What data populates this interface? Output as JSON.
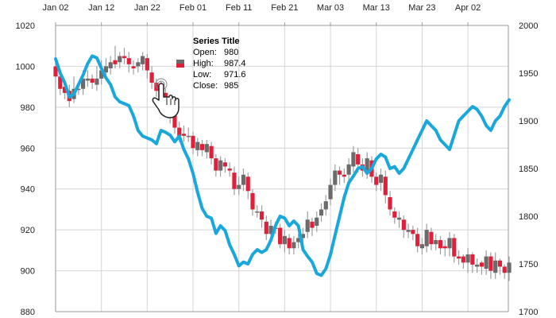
{
  "chart_data": {
    "type": "candlestick+line",
    "x_tick_labels": [
      "Jan 02",
      "Jan 12",
      "Jan 22",
      "Feb 01",
      "Feb 11",
      "Feb 21",
      "Mar 03",
      "Mar 13",
      "Mar 23",
      "Apr 02"
    ],
    "x_range": [
      0,
      99
    ],
    "x_tick_positions": [
      0,
      10,
      20,
      30,
      40,
      50,
      60,
      70,
      80,
      90
    ],
    "y_left": {
      "ticks": [
        880,
        900,
        920,
        940,
        960,
        980,
        1000,
        1020
      ],
      "range": [
        880,
        1020
      ]
    },
    "y_right": {
      "ticks": [
        1700,
        1750,
        1800,
        1850,
        1900,
        1950,
        2000
      ],
      "range": [
        1700,
        2000
      ]
    },
    "grid": true,
    "colors": {
      "up": "#6b6b6b",
      "down": "#e0203a",
      "wick": "#9e9e9e",
      "line": "#1aa7dc",
      "grid": "#d4d4d4",
      "axis": "#9a9a9a"
    },
    "candles": {
      "open": [
        1000,
        995,
        990,
        988,
        984,
        989,
        989,
        993,
        994,
        991,
        994,
        997,
        999,
        1003,
        1002,
        1005,
        1004,
        1000,
        1000,
        1001,
        1004,
        997,
        992,
        990,
        987,
        981,
        976,
        970,
        967,
        966,
        966,
        959,
        962,
        958,
        961,
        955,
        949,
        953,
        950,
        948,
        940,
        942,
        946,
        938,
        929,
        929,
        924,
        918,
        921,
        921,
        913,
        916,
        911,
        914,
        916,
        919,
        924,
        922,
        927,
        930,
        935,
        942,
        949,
        947,
        947,
        951,
        957,
        952,
        949,
        954,
        946,
        943,
        946,
        936,
        929,
        925,
        925,
        919,
        920,
        918,
        911,
        912,
        919,
        913,
        915,
        912,
        911,
        916,
        907,
        907,
        904,
        908,
        902,
        904,
        901,
        907,
        899,
        905,
        902,
        899
      ],
      "close": [
        995,
        989,
        987,
        983,
        989,
        989,
        994,
        994,
        992,
        994,
        998,
        1000,
        1002,
        1001,
        1005,
        1004,
        1001,
        999,
        1002,
        1005,
        998,
        992,
        988,
        986,
        981,
        976,
        970,
        966,
        966,
        966,
        960,
        963,
        959,
        962,
        955,
        949,
        954,
        951,
        949,
        940,
        942,
        947,
        939,
        930,
        929,
        925,
        918,
        922,
        921,
        913,
        917,
        911,
        914,
        916,
        918,
        925,
        921,
        926,
        930,
        934,
        942,
        949,
        947,
        946,
        952,
        958,
        952,
        949,
        955,
        946,
        942,
        947,
        937,
        930,
        926,
        926,
        920,
        920,
        918,
        912,
        913,
        920,
        913,
        915,
        911,
        911,
        916,
        907,
        906,
        904,
        908,
        903,
        903,
        902,
        907,
        900,
        905,
        902,
        899,
        904
      ],
      "high": [
        1004,
        997,
        993,
        991,
        995,
        992,
        998,
        998,
        996,
        1000,
        1003,
        1004,
        1005,
        1010,
        1007,
        1009,
        1007,
        1003,
        1004,
        1007,
        1006,
        1000,
        994,
        993,
        989,
        983,
        978,
        973,
        971,
        970,
        968,
        965,
        964,
        964,
        963,
        957,
        956,
        955,
        953,
        951,
        946,
        950,
        948,
        940,
        932,
        932,
        927,
        925,
        924,
        923,
        920,
        918,
        917,
        918,
        921,
        929,
        926,
        929,
        933,
        937,
        945,
        952,
        951,
        950,
        955,
        961,
        960,
        955,
        958,
        956,
        948,
        950,
        949,
        939,
        931,
        929,
        927,
        923,
        922,
        921,
        916,
        923,
        921,
        918,
        917,
        915,
        919,
        918,
        910,
        908,
        911,
        909,
        906,
        905,
        910,
        909,
        909,
        906,
        903,
        907
      ],
      "low": [
        991,
        986,
        984,
        980,
        982,
        986,
        986,
        990,
        989,
        988,
        991,
        994,
        996,
        999,
        999,
        1001,
        997,
        996,
        997,
        998,
        994,
        989,
        985,
        983,
        978,
        972,
        967,
        963,
        963,
        963,
        957,
        956,
        956,
        955,
        952,
        946,
        946,
        948,
        946,
        937,
        937,
        939,
        935,
        927,
        926,
        921,
        915,
        914,
        918,
        911,
        909,
        908,
        908,
        911,
        913,
        916,
        917,
        919,
        924,
        927,
        932,
        939,
        942,
        943,
        944,
        948,
        948,
        946,
        945,
        943,
        939,
        939,
        933,
        927,
        923,
        921,
        916,
        916,
        915,
        909,
        908,
        909,
        910,
        910,
        908,
        907,
        907,
        904,
        903,
        901,
        899,
        899,
        899,
        898,
        898,
        896,
        896,
        898,
        896,
        895
      ]
    },
    "line": [
      1965,
      1950,
      1940,
      1925,
      1928,
      1938,
      1948,
      1960,
      1968,
      1966,
      1955,
      1945,
      1938,
      1925,
      1920,
      1918,
      1916,
      1905,
      1890,
      1884,
      1882,
      1880,
      1876,
      1890,
      1888,
      1885,
      1878,
      1884,
      1870,
      1860,
      1845,
      1825,
      1808,
      1800,
      1798,
      1782,
      1790,
      1785,
      1770,
      1760,
      1748,
      1752,
      1750,
      1760,
      1765,
      1762,
      1765,
      1775,
      1790,
      1800,
      1798,
      1790,
      1795,
      1790,
      1765,
      1758,
      1752,
      1740,
      1738,
      1745,
      1760,
      1780,
      1800,
      1820,
      1835,
      1842,
      1850,
      1852,
      1845,
      1850,
      1860,
      1865,
      1862,
      1850,
      1852,
      1845,
      1850,
      1860,
      1870,
      1880,
      1890,
      1900,
      1895,
      1890,
      1880,
      1875,
      1870,
      1885,
      1900,
      1905,
      1910,
      1915,
      1912,
      1905,
      1895,
      1890,
      1900,
      1905,
      1915,
      1922
    ]
  },
  "tooltip": {
    "title": "Series Title",
    "rows": [
      {
        "label": "Open:",
        "value": "980"
      },
      {
        "label": "High:",
        "value": "987.4"
      },
      {
        "label": "Low:",
        "value": "971.6"
      },
      {
        "label": "Close:",
        "value": "985"
      }
    ]
  },
  "cursor_icon": "hand-pointer-icon"
}
